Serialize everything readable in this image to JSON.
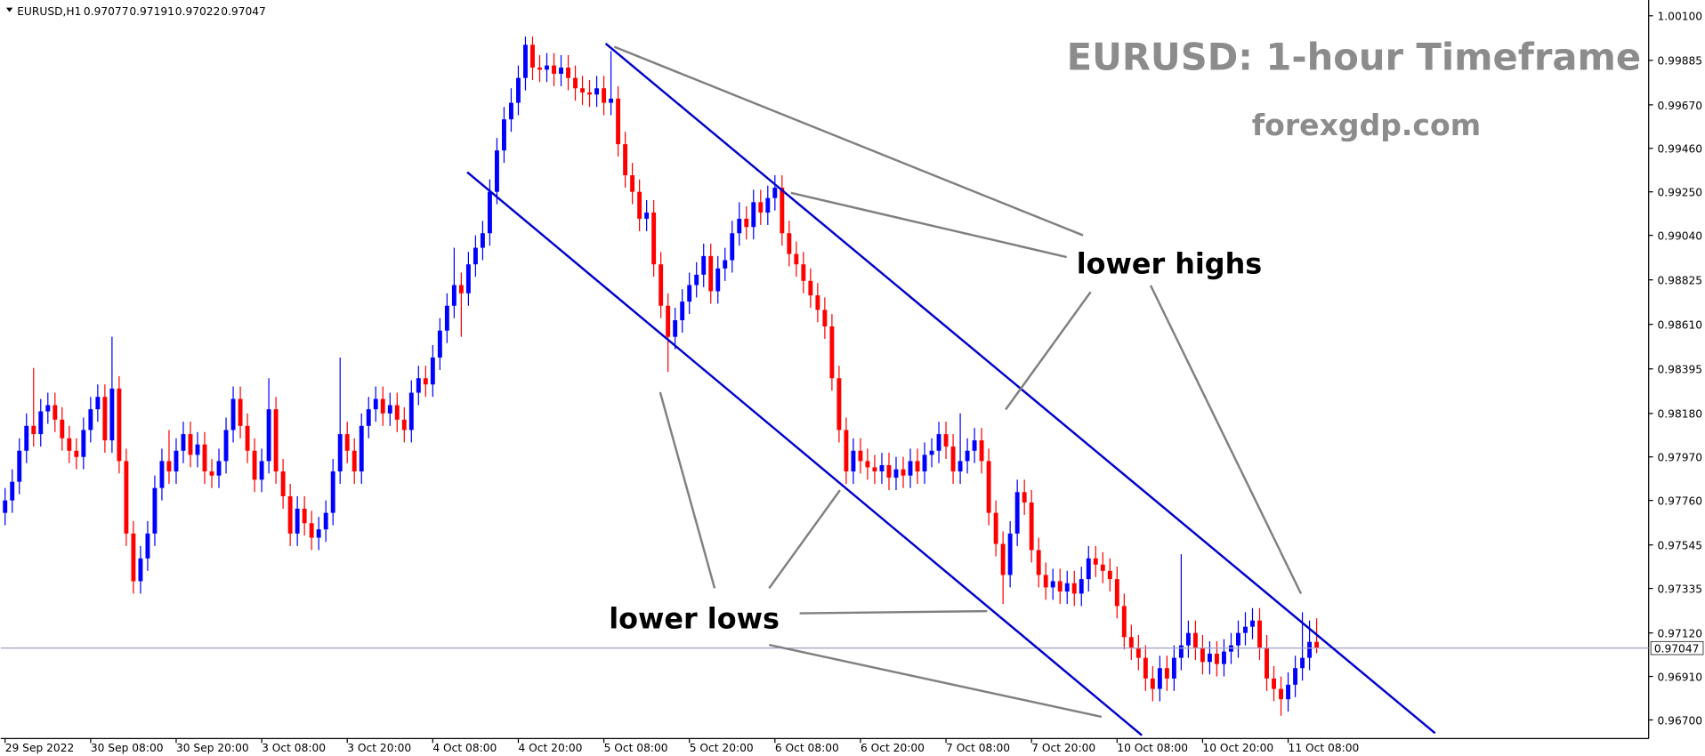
{
  "chart_data": {
    "type": "candlestick",
    "symbol": "EURUSD,H1",
    "title": "EURUSD: 1-hour Timeframe",
    "subtitle": "forexgdp.com",
    "annotations": [
      "lower highs",
      "lower lows"
    ],
    "up_color": "#0000ff",
    "down_color": "#ff0000",
    "ylim": [
      0.9661,
      1.0015
    ],
    "yticks": [
      {
        "value": 1.001,
        "label": "1.00100"
      },
      {
        "value": 0.99885,
        "label": "0.99885"
      },
      {
        "value": 0.9967,
        "label": "0.99670"
      },
      {
        "value": 0.9946,
        "label": "0.99460"
      },
      {
        "value": 0.9925,
        "label": "0.99250"
      },
      {
        "value": 0.9904,
        "label": "0.99040"
      },
      {
        "value": 0.98825,
        "label": "0.98825"
      },
      {
        "value": 0.9861,
        "label": "0.98610"
      },
      {
        "value": 0.98395,
        "label": "0.98395"
      },
      {
        "value": 0.9818,
        "label": "0.98180"
      },
      {
        "value": 0.9797,
        "label": "0.97970"
      },
      {
        "value": 0.9776,
        "label": "0.97760"
      },
      {
        "value": 0.97545,
        "label": "0.97545"
      },
      {
        "value": 0.97335,
        "label": "0.97335"
      },
      {
        "value": 0.9712,
        "label": "0.97120"
      },
      {
        "value": 0.9691,
        "label": "0.96910"
      },
      {
        "value": 0.967,
        "label": "0.96700"
      }
    ],
    "categories": [
      "29 Sep 2022",
      null,
      null,
      null,
      null,
      null,
      null,
      null,
      null,
      null,
      null,
      null,
      "30 Sep 08:00",
      null,
      null,
      null,
      null,
      null,
      null,
      null,
      null,
      null,
      null,
      null,
      "30 Sep 20:00",
      null,
      null,
      null,
      null,
      null,
      null,
      null,
      null,
      null,
      null,
      null,
      "3 Oct 08:00",
      null,
      null,
      null,
      null,
      null,
      null,
      null,
      null,
      null,
      null,
      null,
      "3 Oct 20:00",
      null,
      null,
      null,
      null,
      null,
      null,
      null,
      null,
      null,
      null,
      null,
      "4 Oct 08:00",
      null,
      null,
      null,
      null,
      null,
      null,
      null,
      null,
      null,
      null,
      null,
      "4 Oct 20:00",
      null,
      null,
      null,
      null,
      null,
      null,
      null,
      null,
      null,
      null,
      null,
      "5 Oct 08:00",
      null,
      null,
      null,
      null,
      null,
      null,
      null,
      null,
      null,
      null,
      null,
      "5 Oct 20:00",
      null,
      null,
      null,
      null,
      null,
      null,
      null,
      null,
      null,
      null,
      null,
      "6 Oct 08:00",
      null,
      null,
      null,
      null,
      null,
      null,
      null,
      null,
      null,
      null,
      null,
      "6 Oct 20:00",
      null,
      null,
      null,
      null,
      null,
      null,
      null,
      null,
      null,
      null,
      null,
      "7 Oct 08:00",
      null,
      null,
      null,
      null,
      null,
      null,
      null,
      null,
      null,
      null,
      null,
      "7 Oct 20:00",
      null,
      null,
      null,
      null,
      null,
      null,
      null,
      null,
      null,
      null,
      null,
      "10 Oct 08:00",
      null,
      null,
      null,
      null,
      null,
      null,
      null,
      null,
      null,
      null,
      null,
      "10 Oct 20:00",
      null,
      null,
      null,
      null,
      null,
      null,
      null,
      null,
      null,
      null,
      null,
      "11 Oct 08:00",
      null,
      null,
      null,
      null
    ],
    "open": [
      0.977,
      0.9776,
      0.9785,
      0.98,
      0.9812,
      0.9808,
      0.9819,
      0.9822,
      0.9815,
      0.9806,
      0.98,
      0.9797,
      0.981,
      0.982,
      0.9826,
      0.9805,
      0.983,
      0.9795,
      0.976,
      0.9737,
      0.9748,
      0.976,
      0.9782,
      0.9795,
      0.979,
      0.98,
      0.9808,
      0.9798,
      0.9803,
      0.979,
      0.9788,
      0.9795,
      0.981,
      0.9825,
      0.9812,
      0.98,
      0.9786,
      0.9795,
      0.982,
      0.979,
      0.9778,
      0.976,
      0.9772,
      0.9765,
      0.9758,
      0.9762,
      0.977,
      0.979,
      0.9808,
      0.98,
      0.979,
      0.9812,
      0.982,
      0.9825,
      0.9818,
      0.9822,
      0.9815,
      0.981,
      0.9828,
      0.9835,
      0.9832,
      0.9845,
      0.9858,
      0.987,
      0.988,
      0.9876,
      0.989,
      0.9898,
      0.9905,
      0.9925,
      0.9945,
      0.996,
      0.9968,
      0.998,
      0.9996,
      0.9985,
      0.9984,
      0.9986,
      0.9982,
      0.9985,
      0.998,
      0.9975,
      0.9973,
      0.9972,
      0.9975,
      0.9968,
      0.997,
      0.9948,
      0.9933,
      0.9925,
      0.9912,
      0.9915,
      0.989,
      0.987,
      0.9855,
      0.9863,
      0.9872,
      0.988,
      0.9885,
      0.9894,
      0.9877,
      0.9888,
      0.9892,
      0.9905,
      0.9912,
      0.9908,
      0.992,
      0.9915,
      0.9922,
      0.9927,
      0.9905,
      0.9895,
      0.989,
      0.9882,
      0.9875,
      0.9868,
      0.986,
      0.9835,
      0.981,
      0.979,
      0.98,
      0.9795,
      0.9792,
      0.979,
      0.9793,
      0.9787,
      0.9791,
      0.9788,
      0.9795,
      0.979,
      0.9798,
      0.98,
      0.9808,
      0.9802,
      0.979,
      0.9795,
      0.98,
      0.9805,
      0.9795,
      0.977,
      0.9755,
      0.974,
      0.976,
      0.978,
      0.9775,
      0.9752,
      0.974,
      0.9734,
      0.9737,
      0.9732,
      0.9736,
      0.9731,
      0.9738,
      0.9748,
      0.9745,
      0.9742,
      0.9738,
      0.9725,
      0.971,
      0.9705,
      0.97,
      0.969,
      0.9685,
      0.9695,
      0.969,
      0.97,
      0.9706,
      0.9712,
      0.9705,
      0.9698,
      0.9702,
      0.9697,
      0.9703,
      0.9706,
      0.9712,
      0.9715,
      0.9718,
      0.9705,
      0.969,
      0.9685,
      0.968,
      0.9687,
      0.9695,
      0.97,
      0.97077
    ],
    "high": [
      0.9782,
      0.9791,
      0.9806,
      0.9818,
      0.984,
      0.9825,
      0.9828,
      0.9828,
      0.9821,
      0.9812,
      0.9806,
      0.9816,
      0.9826,
      0.9832,
      0.9832,
      0.9855,
      0.9836,
      0.9801,
      0.9766,
      0.9754,
      0.9766,
      0.9788,
      0.9801,
      0.981,
      0.9806,
      0.9814,
      0.9814,
      0.9809,
      0.9809,
      0.9796,
      0.9801,
      0.9816,
      0.9831,
      0.9831,
      0.9818,
      0.9806,
      0.9801,
      0.9835,
      0.9826,
      0.9796,
      0.9784,
      0.9778,
      0.9778,
      0.9771,
      0.9768,
      0.9776,
      0.9796,
      0.9845,
      0.9814,
      0.9806,
      0.9818,
      0.9826,
      0.9831,
      0.9831,
      0.9828,
      0.9828,
      0.9821,
      0.9834,
      0.9841,
      0.9841,
      0.9851,
      0.9864,
      0.9876,
      0.9898,
      0.9886,
      0.9896,
      0.9904,
      0.9911,
      0.9931,
      0.9951,
      0.9966,
      0.9975,
      0.9986,
      1.0,
      1.0,
      0.9991,
      0.9992,
      0.9992,
      0.9991,
      0.9991,
      0.9986,
      0.9981,
      0.9979,
      0.9981,
      0.9981,
      0.9993,
      0.9976,
      0.9954,
      0.9939,
      0.9931,
      0.9921,
      0.9921,
      0.9896,
      0.9876,
      0.9869,
      0.9878,
      0.9886,
      0.9891,
      0.99,
      0.99,
      0.9894,
      0.9898,
      0.9911,
      0.992,
      0.9918,
      0.9926,
      0.9926,
      0.9928,
      0.9933,
      0.9933,
      0.9911,
      0.9901,
      0.9896,
      0.9888,
      0.9881,
      0.9874,
      0.9866,
      0.9841,
      0.9816,
      0.9806,
      0.9806,
      0.9801,
      0.9798,
      0.9799,
      0.9799,
      0.9797,
      0.9797,
      0.9801,
      0.9801,
      0.9804,
      0.9806,
      0.9814,
      0.9814,
      0.9808,
      0.9818,
      0.9806,
      0.9811,
      0.9811,
      0.9801,
      0.9776,
      0.9761,
      0.9766,
      0.9786,
      0.9786,
      0.9781,
      0.9758,
      0.9746,
      0.9743,
      0.9743,
      0.9742,
      0.9742,
      0.9744,
      0.9754,
      0.9754,
      0.9751,
      0.9748,
      0.9744,
      0.9731,
      0.9716,
      0.9711,
      0.9706,
      0.9696,
      0.9701,
      0.9701,
      0.9706,
      0.975,
      0.9718,
      0.9718,
      0.9711,
      0.9708,
      0.9708,
      0.9709,
      0.9712,
      0.9718,
      0.9722,
      0.9724,
      0.9724,
      0.9711,
      0.9696,
      0.9691,
      0.9693,
      0.9701,
      0.9722,
      0.9718,
      0.97191
    ],
    "low": [
      0.9764,
      0.977,
      0.9779,
      0.9794,
      0.9802,
      0.9802,
      0.9813,
      0.9809,
      0.98,
      0.9794,
      0.9791,
      0.9791,
      0.9804,
      0.9814,
      0.9799,
      0.9799,
      0.9789,
      0.9754,
      0.9731,
      0.9731,
      0.9742,
      0.9754,
      0.9776,
      0.9784,
      0.9784,
      0.9794,
      0.9792,
      0.9792,
      0.9784,
      0.9782,
      0.9782,
      0.9789,
      0.9804,
      0.9806,
      0.9794,
      0.978,
      0.978,
      0.9789,
      0.9784,
      0.9772,
      0.9754,
      0.9754,
      0.9759,
      0.9752,
      0.9752,
      0.9756,
      0.9764,
      0.9784,
      0.9794,
      0.9784,
      0.9784,
      0.9806,
      0.9814,
      0.9812,
      0.9812,
      0.9809,
      0.9804,
      0.9804,
      0.9822,
      0.9826,
      0.9826,
      0.9839,
      0.9852,
      0.9864,
      0.9855,
      0.987,
      0.9884,
      0.9892,
      0.9899,
      0.9919,
      0.9939,
      0.9954,
      0.9962,
      0.9974,
      0.9979,
      0.9978,
      0.9978,
      0.9976,
      0.9976,
      0.9974,
      0.9969,
      0.9967,
      0.9966,
      0.9966,
      0.9962,
      0.9962,
      0.9942,
      0.9927,
      0.9919,
      0.9906,
      0.9906,
      0.9884,
      0.9864,
      0.9838,
      0.9849,
      0.9857,
      0.9866,
      0.9874,
      0.9879,
      0.9871,
      0.9871,
      0.9882,
      0.9886,
      0.9899,
      0.9902,
      0.9902,
      0.9909,
      0.9909,
      0.9916,
      0.9899,
      0.9889,
      0.9884,
      0.9876,
      0.9869,
      0.9862,
      0.9854,
      0.9829,
      0.9804,
      0.9784,
      0.9784,
      0.9789,
      0.9786,
      0.9784,
      0.9784,
      0.9781,
      0.9781,
      0.9782,
      0.9782,
      0.9784,
      0.9784,
      0.9792,
      0.9794,
      0.9796,
      0.9784,
      0.9784,
      0.9789,
      0.9794,
      0.9789,
      0.9764,
      0.9749,
      0.9726,
      0.9734,
      0.9754,
      0.9769,
      0.9746,
      0.9734,
      0.9728,
      0.9728,
      0.9726,
      0.9726,
      0.9725,
      0.9725,
      0.9732,
      0.9739,
      0.9736,
      0.9732,
      0.9719,
      0.9704,
      0.9699,
      0.9694,
      0.9684,
      0.9679,
      0.9679,
      0.9684,
      0.9684,
      0.9694,
      0.97,
      0.9699,
      0.9692,
      0.9692,
      0.9691,
      0.9691,
      0.9697,
      0.97,
      0.9706,
      0.9709,
      0.9699,
      0.9684,
      0.9679,
      0.9672,
      0.9674,
      0.9681,
      0.9689,
      0.9694,
      0.97022
    ],
    "close": [
      0.9776,
      0.9785,
      0.98,
      0.9812,
      0.9808,
      0.9819,
      0.9822,
      0.9815,
      0.9806,
      0.98,
      0.9797,
      0.981,
      0.982,
      0.9826,
      0.9805,
      0.983,
      0.9795,
      0.976,
      0.9737,
      0.9748,
      0.976,
      0.9782,
      0.9795,
      0.979,
      0.98,
      0.9808,
      0.9798,
      0.9803,
      0.979,
      0.9788,
      0.9795,
      0.981,
      0.9825,
      0.9812,
      0.98,
      0.9786,
      0.9795,
      0.982,
      0.979,
      0.9778,
      0.976,
      0.9772,
      0.9765,
      0.9758,
      0.9762,
      0.977,
      0.979,
      0.9808,
      0.98,
      0.979,
      0.9812,
      0.982,
      0.9825,
      0.9818,
      0.9822,
      0.9815,
      0.981,
      0.9828,
      0.9835,
      0.9832,
      0.9845,
      0.9858,
      0.987,
      0.988,
      0.9876,
      0.989,
      0.9898,
      0.9905,
      0.9925,
      0.9945,
      0.996,
      0.9968,
      0.998,
      0.9996,
      0.9985,
      0.9984,
      0.9986,
      0.9982,
      0.9985,
      0.998,
      0.9975,
      0.9973,
      0.9972,
      0.9975,
      0.9968,
      0.997,
      0.9948,
      0.9933,
      0.9925,
      0.9912,
      0.9915,
      0.989,
      0.987,
      0.9855,
      0.9863,
      0.9872,
      0.988,
      0.9885,
      0.9894,
      0.9877,
      0.9888,
      0.9892,
      0.9905,
      0.9912,
      0.9908,
      0.992,
      0.9915,
      0.9922,
      0.9927,
      0.9905,
      0.9895,
      0.989,
      0.9882,
      0.9875,
      0.9868,
      0.986,
      0.9835,
      0.981,
      0.979,
      0.98,
      0.9795,
      0.9792,
      0.979,
      0.9793,
      0.9787,
      0.9791,
      0.9788,
      0.9795,
      0.979,
      0.9798,
      0.98,
      0.9808,
      0.9802,
      0.979,
      0.9795,
      0.98,
      0.9805,
      0.9795,
      0.977,
      0.9755,
      0.974,
      0.976,
      0.978,
      0.9775,
      0.9752,
      0.974,
      0.9734,
      0.9737,
      0.9732,
      0.9736,
      0.9731,
      0.9738,
      0.9748,
      0.9745,
      0.9742,
      0.9738,
      0.9725,
      0.971,
      0.9705,
      0.97,
      0.969,
      0.9685,
      0.9695,
      0.969,
      0.97,
      0.9706,
      0.9712,
      0.9705,
      0.9698,
      0.9702,
      0.9697,
      0.9703,
      0.9706,
      0.9712,
      0.9715,
      0.9718,
      0.9705,
      0.969,
      0.9685,
      0.968,
      0.9687,
      0.9695,
      0.97,
      0.97077,
      0.97047
    ]
  }
}
